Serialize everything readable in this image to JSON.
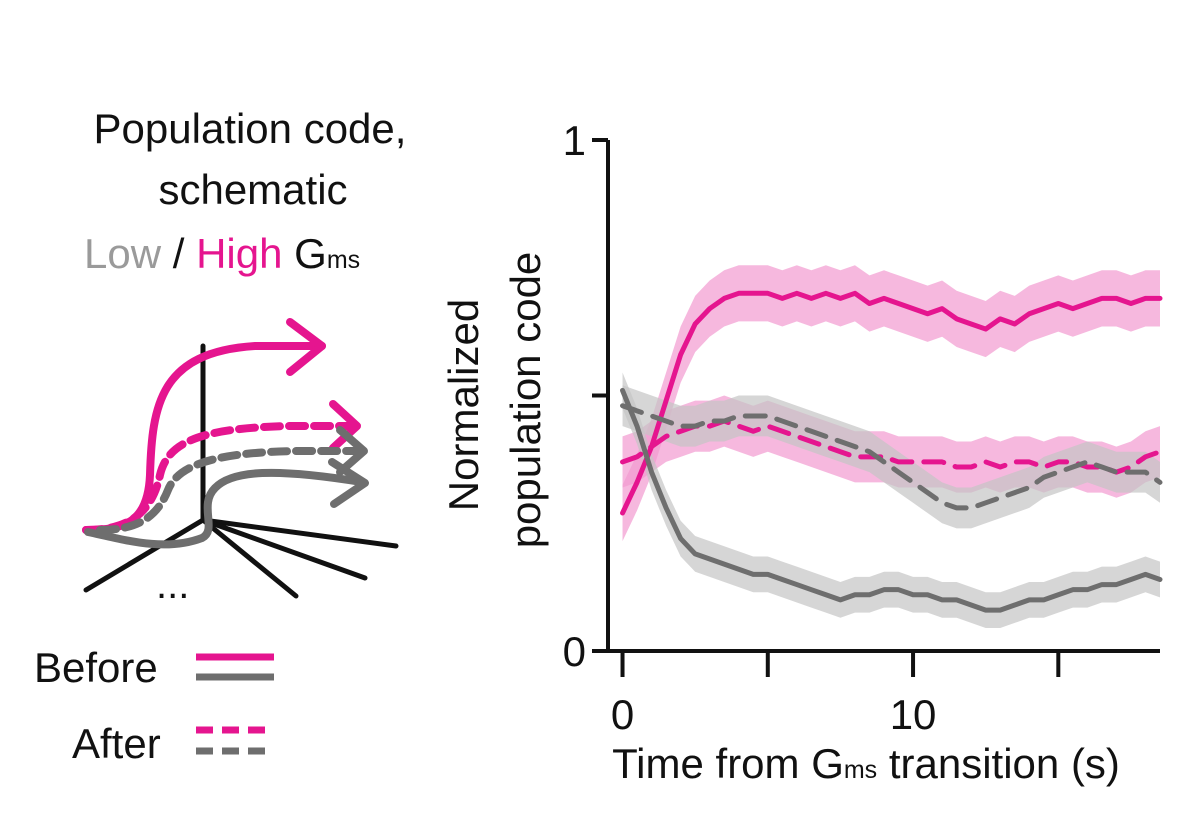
{
  "schematic": {
    "title_line1": "Population code,",
    "title_line2": "schematic",
    "subtitle_low": "Low",
    "subtitle_sep": " / ",
    "subtitle_high": "High",
    "subtitle_g": "G",
    "subtitle_g_sub": "ms",
    "ellipsis": "...",
    "legend_before": "Before",
    "legend_after": "After"
  },
  "colors": {
    "high": "#e5158f",
    "high_band": "#f29ad0",
    "low": "#6e6e6e",
    "low_band": "#c4c4c4",
    "axis": "#111111"
  },
  "chart_data": {
    "type": "line",
    "xlabel_prefix": "Time from G",
    "xlabel_sub": "ms",
    "xlabel_suffix": " transition (s)",
    "ylabel_line1": "Normalized",
    "ylabel_line2": "population code",
    "xlim": [
      -0.5,
      18.5
    ],
    "ylim": [
      0,
      1
    ],
    "x_ticks": [
      0,
      5,
      10,
      15
    ],
    "x_tick_labels": [
      "0",
      "",
      "10",
      ""
    ],
    "y_ticks": [
      0,
      0.5,
      1
    ],
    "y_tick_labels": [
      "0",
      "",
      "1"
    ],
    "x": [
      0,
      0.5,
      1,
      1.5,
      2,
      2.5,
      3,
      3.5,
      4,
      4.5,
      5,
      5.5,
      6,
      6.5,
      7,
      7.5,
      8,
      8.5,
      9,
      9.5,
      10,
      10.5,
      11,
      11.5,
      12,
      12.5,
      13,
      13.5,
      14,
      14.5,
      15,
      15.5,
      16,
      16.5,
      17,
      17.5,
      18,
      18.5
    ],
    "series": [
      {
        "style": "solid",
        "color": "high",
        "values": [
          0.27,
          0.33,
          0.4,
          0.49,
          0.58,
          0.64,
          0.67,
          0.69,
          0.7,
          0.7,
          0.7,
          0.69,
          0.7,
          0.69,
          0.7,
          0.69,
          0.7,
          0.68,
          0.69,
          0.68,
          0.67,
          0.66,
          0.67,
          0.65,
          0.64,
          0.63,
          0.65,
          0.64,
          0.66,
          0.67,
          0.68,
          0.67,
          0.68,
          0.69,
          0.69,
          0.68,
          0.69,
          0.69
        ],
        "band": 0.055
      },
      {
        "style": "dashed",
        "color": "high",
        "values": [
          0.37,
          0.38,
          0.4,
          0.42,
          0.43,
          0.44,
          0.44,
          0.45,
          0.44,
          0.43,
          0.44,
          0.43,
          0.42,
          0.41,
          0.4,
          0.39,
          0.38,
          0.38,
          0.38,
          0.37,
          0.37,
          0.37,
          0.37,
          0.36,
          0.36,
          0.37,
          0.36,
          0.37,
          0.37,
          0.36,
          0.37,
          0.37,
          0.36,
          0.36,
          0.35,
          0.36,
          0.38,
          0.39
        ],
        "band": 0.05
      },
      {
        "style": "solid",
        "color": "low",
        "values": [
          0.51,
          0.44,
          0.35,
          0.28,
          0.22,
          0.19,
          0.18,
          0.17,
          0.16,
          0.15,
          0.15,
          0.14,
          0.13,
          0.12,
          0.11,
          0.1,
          0.11,
          0.11,
          0.12,
          0.12,
          0.11,
          0.11,
          0.1,
          0.1,
          0.09,
          0.08,
          0.08,
          0.09,
          0.1,
          0.1,
          0.11,
          0.12,
          0.12,
          0.13,
          0.13,
          0.14,
          0.15,
          0.14
        ],
        "band": 0.035
      },
      {
        "style": "dashed",
        "color": "low",
        "values": [
          0.48,
          0.47,
          0.46,
          0.45,
          0.44,
          0.44,
          0.45,
          0.45,
          0.46,
          0.46,
          0.46,
          0.45,
          0.44,
          0.43,
          0.42,
          0.41,
          0.4,
          0.39,
          0.37,
          0.35,
          0.33,
          0.31,
          0.29,
          0.28,
          0.28,
          0.29,
          0.3,
          0.31,
          0.32,
          0.34,
          0.35,
          0.36,
          0.37,
          0.36,
          0.35,
          0.35,
          0.35,
          0.33
        ],
        "band": 0.04
      }
    ]
  }
}
